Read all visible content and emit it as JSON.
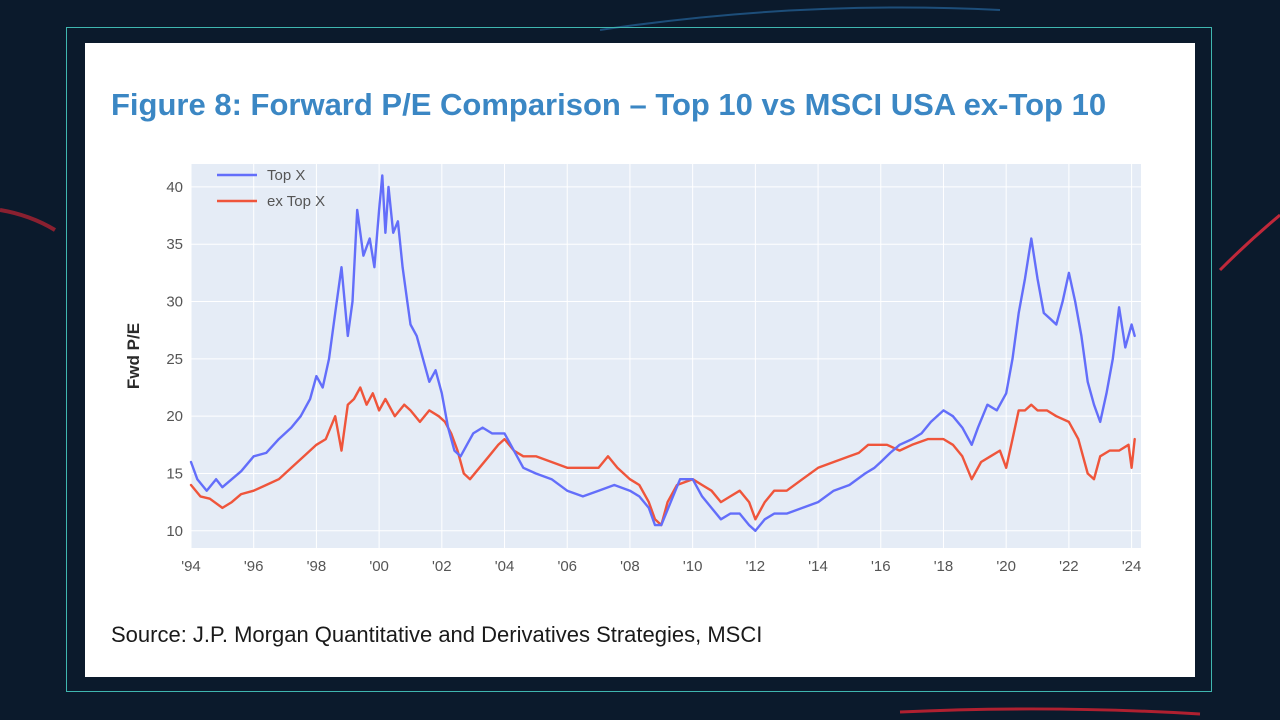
{
  "page": {
    "title": "Figure 8: Forward P/E Comparison – Top 10 vs MSCI USA ex-Top 10",
    "source": "Source: J.P. Morgan Quantitative and Derivatives Strategies, MSCI"
  },
  "colors": {
    "background": "#0b1a2c",
    "frame": "#3fb6b0",
    "title": "#3b87c4",
    "plot_bg": "#e5ecf6",
    "grid": "#ffffff",
    "top": "#636efa",
    "ex": "#ef553b"
  },
  "chart_data": {
    "type": "line",
    "title": "Figure 8: Forward P/E Comparison – Top 10 vs MSCI USA ex-Top 10",
    "xlabel": "",
    "ylabel": "Fwd P/E",
    "xlim": [
      1994,
      2024.3
    ],
    "ylim": [
      8.5,
      42
    ],
    "grid": true,
    "legend": "top-left",
    "x_ticks": [
      1994,
      1996,
      1998,
      2000,
      2002,
      2004,
      2006,
      2008,
      2010,
      2012,
      2014,
      2016,
      2018,
      2020,
      2022,
      2024
    ],
    "x_tick_labels": [
      "'94",
      "'96",
      "'98",
      "'00",
      "'02",
      "'04",
      "'06",
      "'08",
      "'10",
      "'12",
      "'14",
      "'16",
      "'18",
      "'20",
      "'22",
      "'24"
    ],
    "y_ticks": [
      10,
      15,
      20,
      25,
      30,
      35,
      40
    ],
    "y_tick_labels": [
      "10",
      "15",
      "20",
      "25",
      "30",
      "35",
      "40"
    ],
    "series": [
      {
        "name": "Top X",
        "color": "#636efa",
        "x": [
          1994.0,
          1994.2,
          1994.5,
          1994.8,
          1995.0,
          1995.3,
          1995.6,
          1996.0,
          1996.4,
          1996.8,
          1997.2,
          1997.5,
          1997.8,
          1998.0,
          1998.2,
          1998.4,
          1998.6,
          1998.8,
          1999.0,
          1999.15,
          1999.3,
          1999.5,
          1999.7,
          1999.85,
          2000.0,
          2000.1,
          2000.2,
          2000.3,
          2000.45,
          2000.6,
          2000.75,
          2000.9,
          2001.0,
          2001.2,
          2001.4,
          2001.6,
          2001.8,
          2002.0,
          2002.2,
          2002.4,
          2002.6,
          2002.8,
          2003.0,
          2003.3,
          2003.6,
          2004.0,
          2004.3,
          2004.6,
          2005.0,
          2005.5,
          2006.0,
          2006.5,
          2007.0,
          2007.5,
          2008.0,
          2008.3,
          2008.6,
          2008.8,
          2009.0,
          2009.3,
          2009.6,
          2010.0,
          2010.3,
          2010.6,
          2010.9,
          2011.2,
          2011.5,
          2011.8,
          2012.0,
          2012.3,
          2012.6,
          2013.0,
          2013.5,
          2014.0,
          2014.5,
          2015.0,
          2015.5,
          2015.8,
          2016.0,
          2016.3,
          2016.6,
          2017.0,
          2017.3,
          2017.6,
          2018.0,
          2018.3,
          2018.6,
          2018.9,
          2019.1,
          2019.4,
          2019.7,
          2020.0,
          2020.2,
          2020.4,
          2020.6,
          2020.8,
          2021.0,
          2021.2,
          2021.4,
          2021.6,
          2021.8,
          2022.0,
          2022.2,
          2022.4,
          2022.6,
          2022.8,
          2023.0,
          2023.2,
          2023.4,
          2023.6,
          2023.8,
          2024.0,
          2024.1
        ],
        "y": [
          16,
          14.5,
          13.5,
          14.5,
          13.8,
          14.5,
          15.2,
          16.5,
          16.8,
          18,
          19,
          20,
          21.5,
          23.5,
          22.5,
          25,
          29,
          33,
          27,
          30,
          38,
          34,
          35.5,
          33,
          38,
          41,
          36,
          40,
          36,
          37,
          33,
          30,
          28,
          27,
          25,
          23,
          24,
          22,
          19,
          17,
          16.5,
          17.5,
          18.5,
          19,
          18.5,
          18.5,
          17,
          15.5,
          15,
          14.5,
          13.5,
          13,
          13.5,
          14,
          13.5,
          13,
          12,
          10.5,
          10.5,
          12.5,
          14.5,
          14.5,
          13,
          12,
          11,
          11.5,
          11.5,
          10.5,
          10,
          11,
          11.5,
          11.5,
          12,
          12.5,
          13.5,
          14,
          15,
          15.5,
          16,
          16.8,
          17.5,
          18,
          18.5,
          19.5,
          20.5,
          20,
          19,
          17.5,
          19,
          21,
          20.5,
          22,
          25,
          29,
          32,
          35.5,
          32,
          29,
          28.5,
          28,
          30,
          32.5,
          30,
          27,
          23,
          21,
          19.5,
          22,
          25,
          29.5,
          26,
          28,
          27
        ]
      },
      {
        "name": "ex Top X",
        "color": "#ef553b",
        "x": [
          1994.0,
          1994.3,
          1994.6,
          1995.0,
          1995.3,
          1995.6,
          1996.0,
          1996.4,
          1996.8,
          1997.2,
          1997.6,
          1998.0,
          1998.3,
          1998.6,
          1998.8,
          1999.0,
          1999.2,
          1999.4,
          1999.6,
          1999.8,
          2000.0,
          2000.2,
          2000.5,
          2000.8,
          2001.0,
          2001.3,
          2001.6,
          2001.9,
          2002.1,
          2002.3,
          2002.5,
          2002.7,
          2002.9,
          2003.2,
          2003.5,
          2003.8,
          2004.0,
          2004.3,
          2004.6,
          2005.0,
          2005.5,
          2006.0,
          2006.5,
          2007.0,
          2007.3,
          2007.6,
          2008.0,
          2008.3,
          2008.6,
          2008.8,
          2009.0,
          2009.2,
          2009.5,
          2010.0,
          2010.3,
          2010.6,
          2010.9,
          2011.2,
          2011.5,
          2011.8,
          2012.0,
          2012.3,
          2012.6,
          2013.0,
          2013.5,
          2014.0,
          2014.5,
          2015.0,
          2015.3,
          2015.6,
          2015.9,
          2016.2,
          2016.6,
          2017.0,
          2017.5,
          2018.0,
          2018.3,
          2018.6,
          2018.9,
          2019.2,
          2019.5,
          2019.8,
          2020.0,
          2020.2,
          2020.4,
          2020.6,
          2020.8,
          2021.0,
          2021.3,
          2021.6,
          2022.0,
          2022.3,
          2022.6,
          2022.8,
          2023.0,
          2023.3,
          2023.6,
          2023.9,
          2024.0,
          2024.1
        ],
        "y": [
          14,
          13,
          12.8,
          12,
          12.5,
          13.2,
          13.5,
          14,
          14.5,
          15.5,
          16.5,
          17.5,
          18,
          20,
          17,
          21,
          21.5,
          22.5,
          21,
          22,
          20.5,
          21.5,
          20,
          21,
          20.5,
          19.5,
          20.5,
          20,
          19.5,
          18.5,
          17,
          15,
          14.5,
          15.5,
          16.5,
          17.5,
          18,
          17,
          16.5,
          16.5,
          16,
          15.5,
          15.5,
          15.5,
          16.5,
          15.5,
          14.5,
          14,
          12.5,
          11,
          10.5,
          12.5,
          14,
          14.5,
          14,
          13.5,
          12.5,
          13,
          13.5,
          12.5,
          11,
          12.5,
          13.5,
          13.5,
          14.5,
          15.5,
          16,
          16.5,
          16.8,
          17.5,
          17.5,
          17.5,
          17,
          17.5,
          18,
          18,
          17.5,
          16.5,
          14.5,
          16,
          16.5,
          17,
          15.5,
          18,
          20.5,
          20.5,
          21,
          20.5,
          20.5,
          20,
          19.5,
          18,
          15,
          14.5,
          16.5,
          17,
          17,
          17.5,
          15.5,
          18
        ]
      }
    ]
  }
}
